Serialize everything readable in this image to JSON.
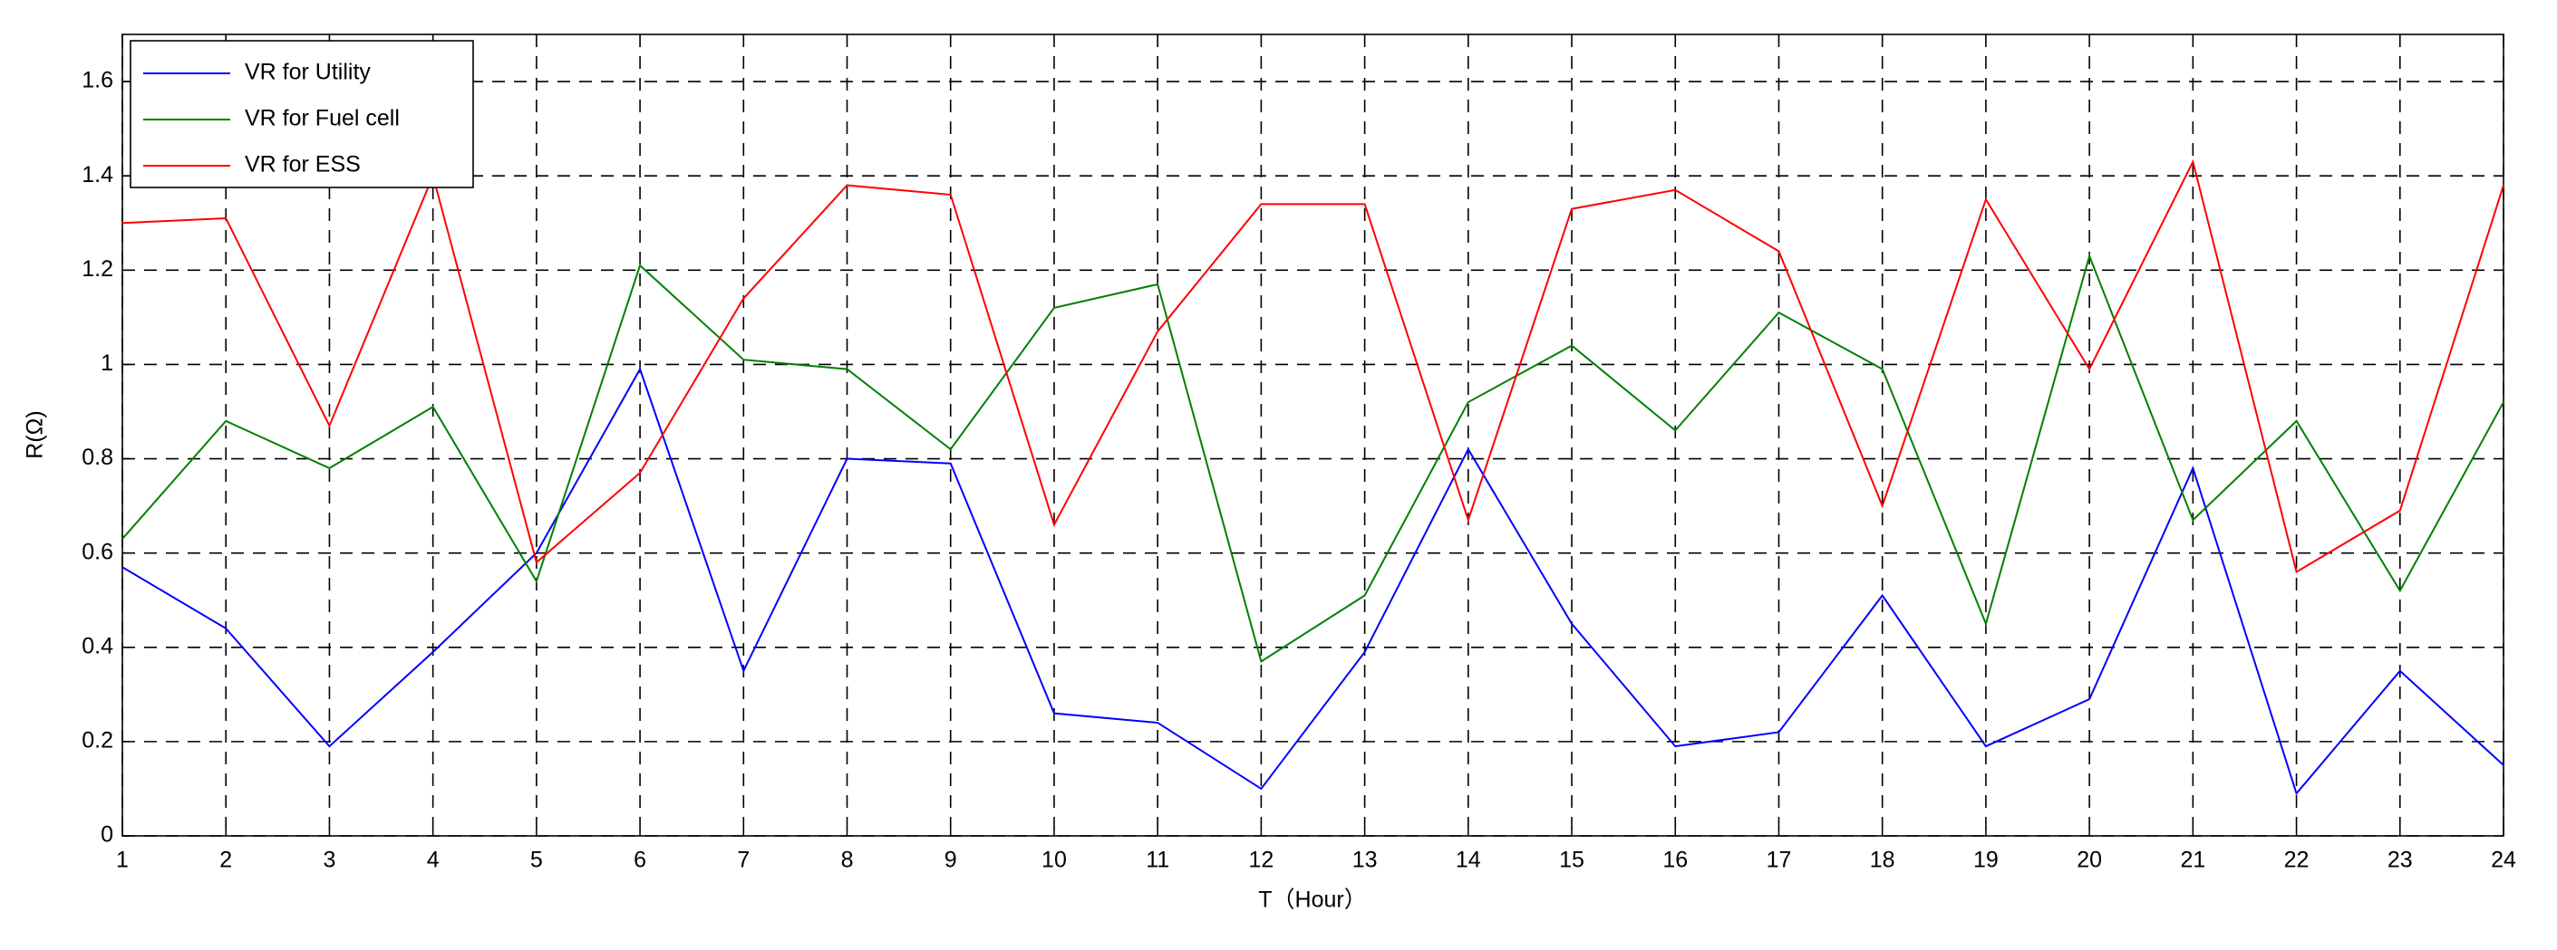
{
  "chart_data": {
    "type": "line",
    "x_label": "T（Hour）",
    "y_label": "R(Ω)",
    "x": [
      1,
      2,
      3,
      4,
      5,
      6,
      7,
      8,
      9,
      10,
      11,
      12,
      13,
      14,
      15,
      16,
      17,
      18,
      19,
      20,
      21,
      22,
      23,
      24
    ],
    "series": [
      {
        "name": "VR for Utility",
        "color": "#0000ff",
        "values": [
          0.57,
          0.44,
          0.19,
          0.39,
          0.6,
          0.99,
          0.35,
          0.8,
          0.79,
          0.26,
          0.24,
          0.1,
          0.39,
          0.82,
          0.45,
          0.19,
          0.22,
          0.51,
          0.19,
          0.29,
          0.78,
          0.09,
          0.35,
          0.15
        ]
      },
      {
        "name": "VR for Fuel cell",
        "color": "#008000",
        "values": [
          0.63,
          0.88,
          0.78,
          0.91,
          0.54,
          1.21,
          1.01,
          0.99,
          0.82,
          1.12,
          1.17,
          0.37,
          0.51,
          0.92,
          1.04,
          0.86,
          1.11,
          0.99,
          0.45,
          1.23,
          0.67,
          0.88,
          0.52,
          0.92
        ]
      },
      {
        "name": "VR for ESS",
        "color": "#ff0000",
        "values": [
          1.3,
          1.31,
          0.87,
          1.4,
          0.58,
          0.77,
          1.14,
          1.38,
          1.36,
          0.66,
          1.07,
          1.34,
          1.34,
          0.67,
          1.33,
          1.37,
          1.24,
          0.7,
          1.35,
          0.99,
          1.43,
          0.56,
          0.69,
          1.38
        ]
      }
    ],
    "xlim": [
      1,
      24
    ],
    "xticks": [
      1,
      2,
      3,
      4,
      5,
      6,
      7,
      8,
      9,
      10,
      11,
      12,
      13,
      14,
      15,
      16,
      17,
      18,
      19,
      20,
      21,
      22,
      23,
      24
    ],
    "ylim": [
      0,
      1.7
    ],
    "yticks": [
      0,
      0.2,
      0.4,
      0.6,
      0.8,
      1,
      1.2,
      1.4,
      1.6
    ],
    "grid": true,
    "legend": "upper left"
  }
}
